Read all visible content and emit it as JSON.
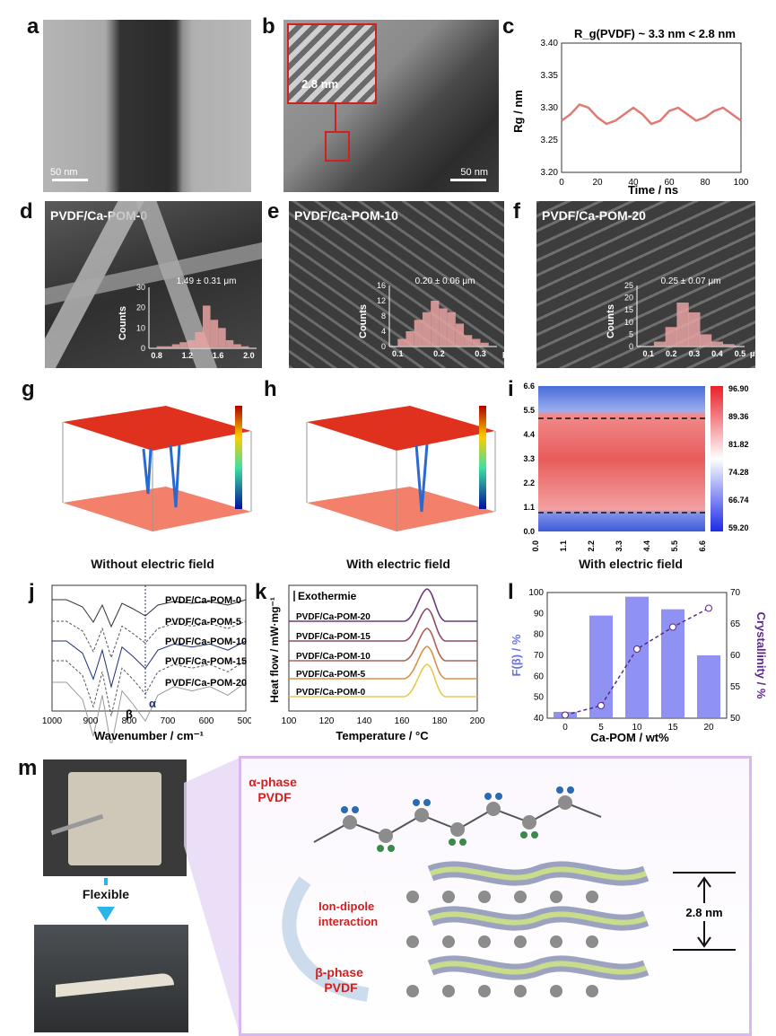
{
  "panels": {
    "a": {
      "label": "a",
      "scale": "50 nm"
    },
    "b": {
      "label": "b",
      "scale": "50 nm",
      "inset": "2.8 nm"
    },
    "c": {
      "label": "c"
    },
    "d": {
      "label": "d",
      "title": "PVDF/Ca-POM-0",
      "stat": "1.49 ± 0.31 μm"
    },
    "e": {
      "label": "e",
      "title": "PVDF/Ca-POM-10",
      "stat": "0.20 ± 0.06 μm"
    },
    "f": {
      "label": "f",
      "title": "PVDF/Ca-POM-20",
      "stat": "0.25 ± 0.07 μm"
    },
    "g": {
      "label": "g",
      "caption": "Without electric field"
    },
    "h": {
      "label": "h",
      "caption": "With electric field"
    },
    "i": {
      "label": "i",
      "caption": "With electric field"
    },
    "j": {
      "label": "j"
    },
    "k": {
      "label": "k"
    },
    "l": {
      "label": "l"
    },
    "m": {
      "label": "m",
      "flexible": "Flexible",
      "alpha": "α-phase\nPVDF",
      "beta": "β-phase\nPVDF",
      "interaction": "Ion-dipole\ninteraction",
      "spacing": "2.8 nm"
    }
  },
  "colors": {
    "rg": "#e07a72",
    "bar": "#7b7ff0",
    "cryst": "#5b2a86",
    "hist": "#e8a2a2"
  },
  "chart_data": [
    {
      "id": "c",
      "type": "line",
      "annotation": "R_g(PVDF) ~ 3.3 nm < 2.8 nm",
      "xlabel": "Time / ns",
      "ylabel": "Rg / nm",
      "xlim": [
        0,
        100
      ],
      "ylim": [
        3.2,
        3.4
      ],
      "xticks": [
        0,
        20,
        40,
        60,
        80,
        100
      ],
      "yticks": [
        "3.20",
        "3.25",
        "3.30",
        "3.35",
        "3.40"
      ],
      "series": [
        {
          "x": [
            0,
            5,
            10,
            15,
            20,
            25,
            30,
            35,
            40,
            45,
            50,
            55,
            60,
            65,
            70,
            75,
            80,
            85,
            90,
            95,
            100
          ],
          "y": [
            3.28,
            3.29,
            3.305,
            3.3,
            3.285,
            3.275,
            3.28,
            3.29,
            3.3,
            3.29,
            3.275,
            3.28,
            3.295,
            3.3,
            3.29,
            3.28,
            3.285,
            3.295,
            3.3,
            3.29,
            3.28
          ]
        }
      ]
    },
    {
      "id": "d",
      "type": "bar",
      "xlabel": "μm",
      "ylabel": "Counts",
      "xticks": [
        "0.8",
        "1.2",
        "1.6",
        "2.0"
      ],
      "yticks": [
        "0",
        "10",
        "20",
        "30"
      ],
      "x": [
        0.85,
        0.95,
        1.05,
        1.15,
        1.25,
        1.35,
        1.45,
        1.55,
        1.65,
        1.75,
        1.85,
        1.95
      ],
      "values": [
        1,
        1,
        2,
        3,
        4,
        8,
        21,
        14,
        10,
        4,
        2,
        1
      ]
    },
    {
      "id": "e",
      "type": "bar",
      "xlabel": "μm",
      "ylabel": "Counts",
      "xticks": [
        "0.1",
        "0.2",
        "0.3"
      ],
      "yticks": [
        "0",
        "4",
        "8",
        "12",
        "16"
      ],
      "x": [
        0.11,
        0.13,
        0.15,
        0.17,
        0.19,
        0.21,
        0.23,
        0.25,
        0.27,
        0.29,
        0.31
      ],
      "values": [
        2,
        4,
        7,
        9,
        12,
        10,
        9,
        6,
        3,
        2,
        1
      ]
    },
    {
      "id": "f",
      "type": "bar",
      "xlabel": "μm",
      "ylabel": "Counts",
      "xticks": [
        "0.1",
        "0.2",
        "0.3",
        "0.4",
        "0.5"
      ],
      "yticks": [
        "0",
        "5",
        "10",
        "15",
        "20",
        "25"
      ],
      "x": [
        0.15,
        0.2,
        0.25,
        0.3,
        0.35,
        0.4,
        0.45
      ],
      "values": [
        2,
        8,
        18,
        14,
        5,
        2,
        1
      ]
    },
    {
      "id": "i",
      "type": "heatmap",
      "colorbar": [
        "96.90",
        "89.36",
        "81.82",
        "74.28",
        "66.74",
        "59.20"
      ],
      "xticks": [
        "0.0",
        "1.1",
        "2.2",
        "3.3",
        "4.4",
        "5.5",
        "6.6"
      ],
      "yticks": [
        "0.0",
        "1.1",
        "2.2",
        "3.3",
        "4.4",
        "5.5",
        "6.6"
      ]
    },
    {
      "id": "j",
      "type": "line",
      "xlabel": "Wavenumber / cm⁻¹",
      "xticks": [
        "1000",
        "900",
        "800",
        "700",
        "600",
        "500"
      ],
      "series": [
        {
          "name": "PVDF/Ca-POM-0"
        },
        {
          "name": "PVDF/Ca-POM-5"
        },
        {
          "name": "PVDF/Ca-POM-10"
        },
        {
          "name": "PVDF/Ca-POM-15"
        },
        {
          "name": "PVDF/Ca-POM-20"
        }
      ],
      "annotations": [
        "β",
        "α"
      ]
    },
    {
      "id": "k",
      "type": "line",
      "xlabel": "Temperature / °C",
      "ylabel": "Heat flow / mW·mg⁻¹",
      "annotation": "Exothermie",
      "xticks": [
        "100",
        "120",
        "140",
        "160",
        "180",
        "200"
      ],
      "series": [
        {
          "name": "PVDF/Ca-POM-20"
        },
        {
          "name": "PVDF/Ca-POM-15"
        },
        {
          "name": "PVDF/Ca-POM-10"
        },
        {
          "name": "PVDF/Ca-POM-5"
        },
        {
          "name": "PVDF/Ca-POM-0"
        }
      ]
    },
    {
      "id": "l",
      "type": "bar",
      "xlabel": "Ca-POM / wt%",
      "ylabel": "F(β) / %",
      "y2label": "Crystallinity / %",
      "categories": [
        "0",
        "5",
        "10",
        "15",
        "20"
      ],
      "values": [
        43,
        89,
        98,
        92,
        70
      ],
      "line": [
        50.5,
        52,
        61,
        64.5,
        67.5
      ],
      "ylim": [
        40,
        100
      ],
      "y2lim": [
        50,
        70
      ],
      "yticks": [
        "40",
        "50",
        "60",
        "70",
        "80",
        "90",
        "100"
      ],
      "y2ticks": [
        "50",
        "55",
        "60",
        "65",
        "70"
      ]
    }
  ]
}
